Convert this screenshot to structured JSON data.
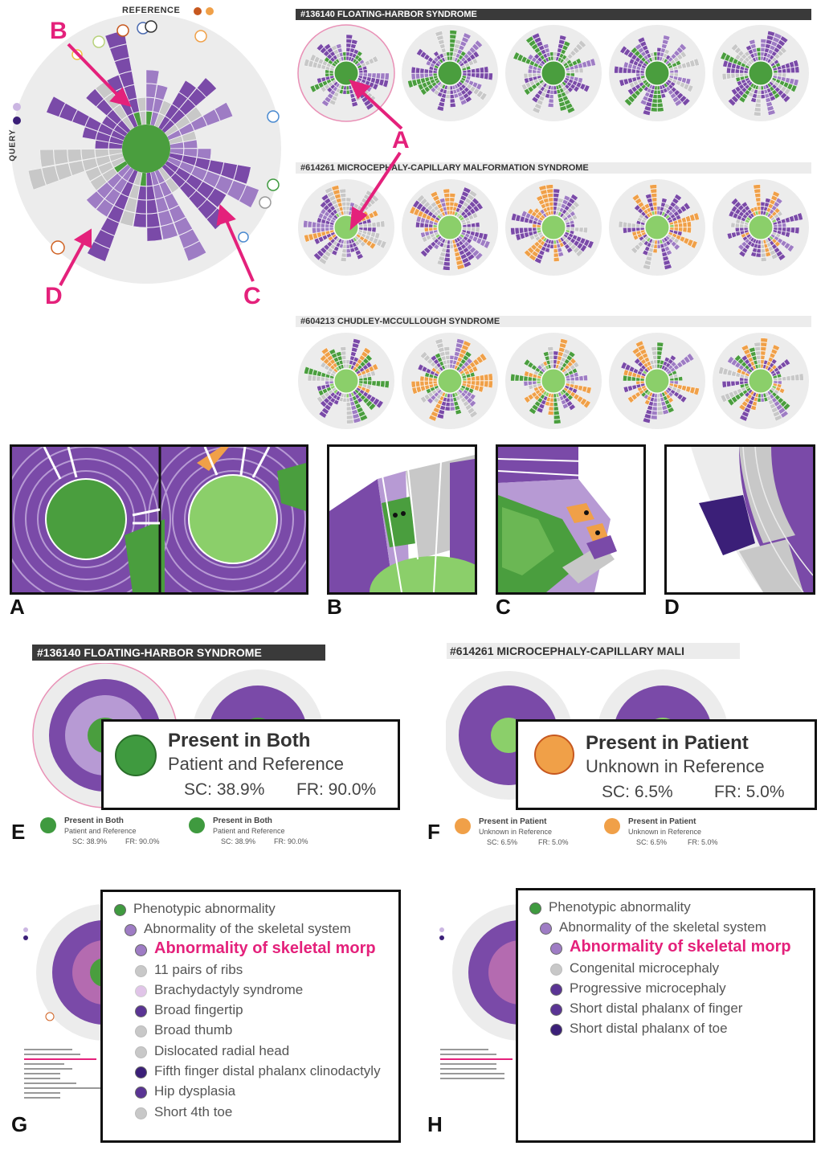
{
  "main_figure": {
    "reference_label": "REFERENCE",
    "query_label": "QUERY",
    "callouts": [
      "A",
      "B",
      "C",
      "D"
    ]
  },
  "rows": [
    {
      "header": "#136140 FLOATING-HARBOR SYNDROME"
    },
    {
      "header": "#614261 MICROCEPHALY-CAPILLARY MALFORMATION SYNDROME"
    },
    {
      "header": "#604213 CHUDLEY-MCCULLOUGH SYNDROME"
    }
  ],
  "panels": [
    "A",
    "B",
    "C",
    "D",
    "E",
    "F",
    "G",
    "H"
  ],
  "panel_e": {
    "header": "#136140 FLOATING-HARBOR SYNDROME",
    "tooltip": {
      "title": "Present in Both",
      "subtitle": "Patient and Reference",
      "sc": "SC: 38.9%",
      "fr": "FR: 90.0%"
    },
    "mini": [
      {
        "title": "Present in Both",
        "subtitle": "Patient and Reference",
        "sc": "SC: 38.9%",
        "fr": "FR: 90.0%"
      },
      {
        "title": "Present in Both",
        "subtitle": "Patient and Reference",
        "sc": "SC: 38.9%",
        "fr": "FR: 90.0%"
      }
    ]
  },
  "panel_f": {
    "header": "#614261 MICROCEPHALY-CAPILLARY MALI",
    "tooltip": {
      "title": "Present in Patient",
      "subtitle": "Unknown in Reference",
      "sc": "SC: 6.5%",
      "fr": "FR: 5.0%"
    },
    "mini": [
      {
        "title": "Present in Patient",
        "subtitle": "Unknown in Reference",
        "sc": "SC: 6.5%",
        "fr": "FR: 5.0%"
      },
      {
        "title": "Present in Patient",
        "subtitle": "Unknown in Reference",
        "sc": "SC: 6.5%",
        "fr": "FR: 5.0%"
      }
    ]
  },
  "panel_g": {
    "items": [
      "Phenotypic abnormality",
      "Abnormality of the skeletal system",
      "Abnormality of skeletal morp",
      "11 pairs of ribs",
      "Brachydactyly syndrome",
      "Broad fingertip",
      "Broad thumb",
      "Dislocated radial head",
      "Fifth finger distal phalanx clinodactyly",
      "Hip dysplasia",
      "Short 4th toe"
    ]
  },
  "panel_h": {
    "items": [
      "Phenotypic abnormality",
      "Abnormality of the skeletal system",
      "Abnormality of skeletal morp",
      "Congenital microcephaly",
      "Progressive microcephaly",
      "Short distal phalanx of finger",
      "Short distal phalanx of toe"
    ]
  },
  "colors": {
    "both": "#3f9a3f",
    "both_light": "#8bcf6a",
    "patient_only": "#f0a048",
    "query_purple": "#7a4aa8",
    "query_light": "#b79ad4",
    "unknown": "#c8c8c8",
    "accent": "#e4217b",
    "ref_orange": "#c7581f",
    "ref_light_orange": "#f0a048"
  }
}
